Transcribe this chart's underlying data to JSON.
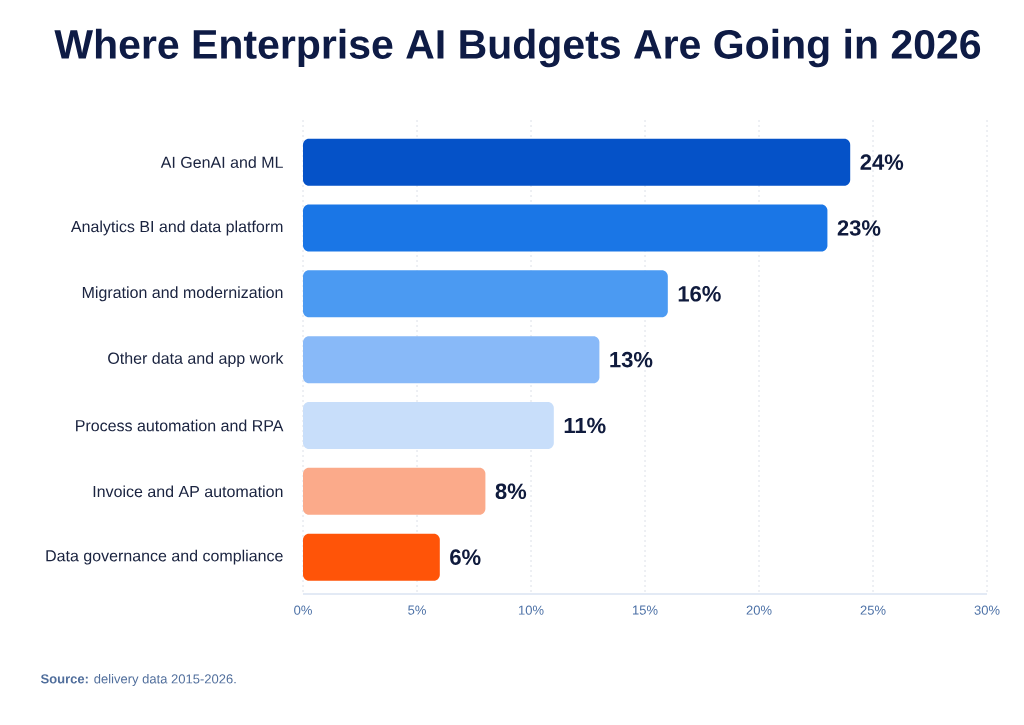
{
  "chart_data": {
    "type": "bar",
    "orientation": "horizontal",
    "title": "Where Enterprise AI Budgets Are Going in 2026",
    "categories": [
      "AI GenAI and ML",
      "Analytics BI and data platform",
      "Migration and modernization",
      "Other data and app work",
      "Process automation and RPA",
      "Invoice and AP automation",
      "Data governance and compliance"
    ],
    "values": [
      24,
      23,
      16,
      13,
      11,
      8,
      6
    ],
    "colors": [
      "#0552c8",
      "#1a76e6",
      "#4b9af2",
      "#88b9f8",
      "#c8defa",
      "#fbaa8a",
      "#ff5408"
    ],
    "value_labels": [
      "24%",
      "23%",
      "16%",
      "13%",
      "11%",
      "8%",
      "6%"
    ],
    "xlim": [
      0,
      30
    ],
    "xticks": [
      {
        "value": 0,
        "label": "0%"
      },
      {
        "value": 5,
        "label": "5%"
      },
      {
        "value": 10,
        "label": "10%"
      },
      {
        "value": 15,
        "label": "15%"
      },
      {
        "value": 20,
        "label": "20%"
      },
      {
        "value": 25,
        "label": "25%"
      },
      {
        "value": 30,
        "label": "30%"
      }
    ],
    "grid": "x",
    "annotations": [
      "**Source:** delivery data 2015-2026."
    ]
  }
}
